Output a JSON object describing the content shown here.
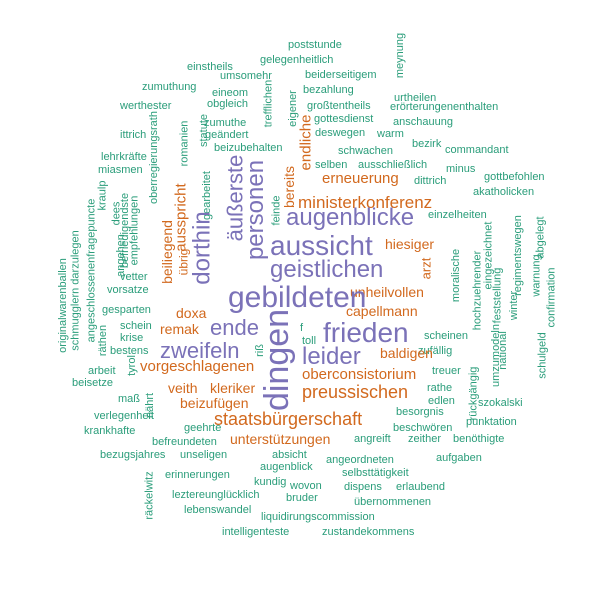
{
  "colors": {
    "green": "#2a9d7a",
    "orange": "#d2691e",
    "purple": "#7b72b8"
  },
  "words": [
    {
      "text": "poststunde",
      "c": "green"
    },
    {
      "text": "meynung",
      "c": "green"
    },
    {
      "text": "gelegenheitlich",
      "c": "green"
    },
    {
      "text": "einstheils",
      "c": "green"
    },
    {
      "text": "umsomehr",
      "c": "green"
    },
    {
      "text": "beiderseitigem",
      "c": "green"
    },
    {
      "text": "zumuthung",
      "c": "green"
    },
    {
      "text": "trefflichen",
      "c": "green"
    },
    {
      "text": "bezahlung",
      "c": "green"
    },
    {
      "text": "urtheilen",
      "c": "green"
    },
    {
      "text": "eineom",
      "c": "green"
    },
    {
      "text": "werthester",
      "c": "green"
    },
    {
      "text": "obgleich",
      "c": "green"
    },
    {
      "text": "eigener",
      "c": "green"
    },
    {
      "text": "großtentheils",
      "c": "green"
    },
    {
      "text": "erörterungenenthalten",
      "c": "green"
    },
    {
      "text": "zumuthe",
      "c": "green"
    },
    {
      "text": "gottesdienst",
      "c": "green"
    },
    {
      "text": "anschauung",
      "c": "green"
    },
    {
      "text": "oberregierungsrath",
      "c": "green"
    },
    {
      "text": "ittrich",
      "c": "green"
    },
    {
      "text": "geändert",
      "c": "green"
    },
    {
      "text": "romanien",
      "c": "green"
    },
    {
      "text": "statute",
      "c": "green"
    },
    {
      "text": "deswegen",
      "c": "green"
    },
    {
      "text": "warm",
      "c": "green"
    },
    {
      "text": "bezirk",
      "c": "green"
    },
    {
      "text": "beizubehalten",
      "c": "green"
    },
    {
      "text": "commandant",
      "c": "green"
    },
    {
      "text": "lehrkräfte",
      "c": "green"
    },
    {
      "text": "schwachen",
      "c": "green"
    },
    {
      "text": "miasmen",
      "c": "green"
    },
    {
      "text": "selben",
      "c": "green"
    },
    {
      "text": "ausschließlich",
      "c": "green"
    },
    {
      "text": "minus",
      "c": "green"
    },
    {
      "text": "gottbefohlen",
      "c": "green"
    },
    {
      "text": "feinde",
      "c": "green"
    },
    {
      "text": "dittrich",
      "c": "green"
    },
    {
      "text": "kraulp",
      "c": "green"
    },
    {
      "text": "befriedigendste",
      "c": "green"
    },
    {
      "text": "gearbeitet",
      "c": "green"
    },
    {
      "text": "akatholicken",
      "c": "green"
    },
    {
      "text": "angeschlossenenfragepuncte",
      "c": "green"
    },
    {
      "text": "dees",
      "c": "green"
    },
    {
      "text": "empfehlungen",
      "c": "green"
    },
    {
      "text": "einzelheiten",
      "c": "green"
    },
    {
      "text": "schmugglern darzulegen",
      "c": "green"
    },
    {
      "text": "eingezeichnet",
      "c": "green"
    },
    {
      "text": "regimentswegen",
      "c": "green"
    },
    {
      "text": "originalwarenballen",
      "c": "green"
    },
    {
      "text": "angehen",
      "c": "green"
    },
    {
      "text": "abgelegt",
      "c": "green"
    },
    {
      "text": "vetter",
      "c": "green"
    },
    {
      "text": "moralische",
      "c": "green"
    },
    {
      "text": "hochzuehrender",
      "c": "green"
    },
    {
      "text": "warnung",
      "c": "green"
    },
    {
      "text": "vorsatze",
      "c": "green"
    },
    {
      "text": "feststellung",
      "c": "green"
    },
    {
      "text": "confirmation",
      "c": "green"
    },
    {
      "text": "gesparten",
      "c": "green"
    },
    {
      "text": "winter",
      "c": "green"
    },
    {
      "text": "schein",
      "c": "green"
    },
    {
      "text": "krise",
      "c": "green"
    },
    {
      "text": "räthen",
      "c": "green"
    },
    {
      "text": "bestens",
      "c": "green"
    },
    {
      "text": "scheinen",
      "c": "green"
    },
    {
      "text": "national",
      "c": "green"
    },
    {
      "text": "umzumodeln",
      "c": "green"
    },
    {
      "text": "schulgeld",
      "c": "green"
    },
    {
      "text": "zufällig",
      "c": "green"
    },
    {
      "text": "tyrol",
      "c": "green"
    },
    {
      "text": "arbeit",
      "c": "green"
    },
    {
      "text": "treuer",
      "c": "green"
    },
    {
      "text": "beisetze",
      "c": "green"
    },
    {
      "text": "rathe",
      "c": "green"
    },
    {
      "text": "edlen",
      "c": "green"
    },
    {
      "text": "rückgängig",
      "c": "green"
    },
    {
      "text": "szokalski",
      "c": "green"
    },
    {
      "text": "verlegenheit",
      "c": "green"
    },
    {
      "text": "besorgnis",
      "c": "green"
    },
    {
      "text": "punktation",
      "c": "green"
    },
    {
      "text": "krankhafte",
      "c": "green"
    },
    {
      "text": "geehrte",
      "c": "green"
    },
    {
      "text": "beschwören",
      "c": "green"
    },
    {
      "text": "befreundeten",
      "c": "green"
    },
    {
      "text": "angreift",
      "c": "green"
    },
    {
      "text": "zeither",
      "c": "green"
    },
    {
      "text": "benöthigte",
      "c": "green"
    },
    {
      "text": "bezugsjahres",
      "c": "green"
    },
    {
      "text": "unseligen",
      "c": "green"
    },
    {
      "text": "absicht",
      "c": "green"
    },
    {
      "text": "angeordneten",
      "c": "green"
    },
    {
      "text": "aufgaben",
      "c": "green"
    },
    {
      "text": "augenblick",
      "c": "green"
    },
    {
      "text": "selbsttätigkeit",
      "c": "green"
    },
    {
      "text": "erinnerungen",
      "c": "green"
    },
    {
      "text": "kundig",
      "c": "green"
    },
    {
      "text": "dispens",
      "c": "green"
    },
    {
      "text": "erlaubend",
      "c": "green"
    },
    {
      "text": "räckelwitz",
      "c": "green"
    },
    {
      "text": "leztereunglücklich",
      "c": "green"
    },
    {
      "text": "bruder",
      "c": "green"
    },
    {
      "text": "wovon",
      "c": "green"
    },
    {
      "text": "nährt",
      "c": "green"
    },
    {
      "text": "lebenswandel",
      "c": "green"
    },
    {
      "text": "übernommenen",
      "c": "green"
    },
    {
      "text": "maß",
      "c": "green"
    },
    {
      "text": "liquidirungscommission",
      "c": "green"
    },
    {
      "text": "intelligenteste",
      "c": "green"
    },
    {
      "text": "zustandekommens",
      "c": "green"
    },
    {
      "text": "f",
      "c": "green"
    },
    {
      "text": "toll",
      "c": "green"
    },
    {
      "text": "riß",
      "c": "green"
    },
    {
      "text": "endliche",
      "c": "orange"
    },
    {
      "text": "erneuerung",
      "c": "orange"
    },
    {
      "text": "bereits",
      "c": "orange"
    },
    {
      "text": "ministerkonferenz",
      "c": "orange"
    },
    {
      "text": "ausspricht",
      "c": "orange"
    },
    {
      "text": "beiliegend",
      "c": "orange"
    },
    {
      "text": "übrig",
      "c": "orange"
    },
    {
      "text": "arzt",
      "c": "orange"
    },
    {
      "text": "hiesiger",
      "c": "orange"
    },
    {
      "text": "unheilvollen",
      "c": "orange"
    },
    {
      "text": "doxa",
      "c": "orange"
    },
    {
      "text": "capellmann",
      "c": "orange"
    },
    {
      "text": "remak",
      "c": "orange"
    },
    {
      "text": "baldigen",
      "c": "orange"
    },
    {
      "text": "vorgeschlagenen",
      "c": "orange"
    },
    {
      "text": "oberconsistorium",
      "c": "orange"
    },
    {
      "text": "veith",
      "c": "orange"
    },
    {
      "text": "kleriker",
      "c": "orange"
    },
    {
      "text": "preussischen",
      "c": "orange"
    },
    {
      "text": "beizufügen",
      "c": "orange"
    },
    {
      "text": "staatsbürgerschaft",
      "c": "orange"
    },
    {
      "text": "unterstützungen",
      "c": "orange"
    },
    {
      "text": "personen",
      "c": "purple"
    },
    {
      "text": "äußerste",
      "c": "purple"
    },
    {
      "text": "augenblicke",
      "c": "purple"
    },
    {
      "text": "dorthin",
      "c": "purple"
    },
    {
      "text": "aussicht",
      "c": "purple"
    },
    {
      "text": "geistlichen",
      "c": "purple"
    },
    {
      "text": "gebildeten",
      "c": "purple"
    },
    {
      "text": "ende",
      "c": "purple"
    },
    {
      "text": "frieden",
      "c": "purple"
    },
    {
      "text": "zweifeln",
      "c": "purple"
    },
    {
      "text": "leider",
      "c": "purple"
    },
    {
      "text": "dingen",
      "c": "purple"
    }
  ]
}
